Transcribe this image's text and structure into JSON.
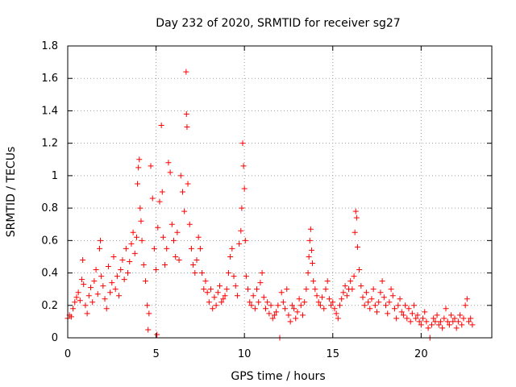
{
  "chart_data": {
    "type": "scatter",
    "title": "Day 232 of 2020, SRMTID for receiver sg27",
    "xlabel": "GPS time / hours",
    "ylabel": "SRMTID / TECUs",
    "xlim": [
      0,
      24
    ],
    "ylim": [
      0,
      1.8
    ],
    "xticks": [
      0,
      5,
      10,
      15,
      20
    ],
    "xtick_labels": [
      "0",
      "5",
      "10",
      "15",
      "20"
    ],
    "yticks": [
      0,
      0.2,
      0.4,
      0.6,
      0.8,
      1.0,
      1.2,
      1.4,
      1.6,
      1.8
    ],
    "ytick_labels": [
      "0",
      "0.2",
      "0.4",
      "0.6",
      "0.8",
      "1",
      "1.2",
      "1.4",
      "1.6",
      "1.8"
    ],
    "grid": true,
    "marker": "plus",
    "series_color": "#ff0000",
    "series": [
      {
        "name": "SRMTID",
        "points": [
          [
            0.0,
            0.12
          ],
          [
            0.1,
            0.14
          ],
          [
            0.2,
            0.13
          ],
          [
            0.3,
            0.18
          ],
          [
            0.4,
            0.22
          ],
          [
            0.5,
            0.25
          ],
          [
            0.6,
            0.28
          ],
          [
            0.7,
            0.23
          ],
          [
            0.8,
            0.36
          ],
          [
            0.85,
            0.48
          ],
          [
            0.9,
            0.33
          ],
          [
            1.0,
            0.2
          ],
          [
            1.1,
            0.15
          ],
          [
            1.2,
            0.26
          ],
          [
            1.3,
            0.31
          ],
          [
            1.4,
            0.22
          ],
          [
            1.5,
            0.35
          ],
          [
            1.6,
            0.42
          ],
          [
            1.7,
            0.27
          ],
          [
            1.8,
            0.55
          ],
          [
            1.85,
            0.6
          ],
          [
            1.9,
            0.38
          ],
          [
            2.0,
            0.32
          ],
          [
            2.1,
            0.24
          ],
          [
            2.2,
            0.18
          ],
          [
            2.3,
            0.44
          ],
          [
            2.4,
            0.28
          ],
          [
            2.5,
            0.34
          ],
          [
            2.6,
            0.5
          ],
          [
            2.7,
            0.3
          ],
          [
            2.8,
            0.38
          ],
          [
            2.9,
            0.26
          ],
          [
            3.0,
            0.42
          ],
          [
            3.1,
            0.48
          ],
          [
            3.2,
            0.36
          ],
          [
            3.3,
            0.55
          ],
          [
            3.4,
            0.4
          ],
          [
            3.5,
            0.47
          ],
          [
            3.6,
            0.58
          ],
          [
            3.7,
            0.65
          ],
          [
            3.8,
            0.52
          ],
          [
            3.9,
            0.62
          ],
          [
            3.95,
            0.95
          ],
          [
            4.0,
            1.05
          ],
          [
            4.05,
            1.1
          ],
          [
            4.1,
            0.8
          ],
          [
            4.15,
            0.72
          ],
          [
            4.2,
            0.6
          ],
          [
            4.3,
            0.45
          ],
          [
            4.4,
            0.35
          ],
          [
            4.5,
            0.2
          ],
          [
            4.55,
            0.05
          ],
          [
            4.6,
            0.15
          ],
          [
            4.7,
            1.06
          ],
          [
            4.8,
            0.86
          ],
          [
            4.9,
            0.55
          ],
          [
            5.0,
            0.42
          ],
          [
            5.05,
            0.02
          ],
          [
            5.1,
            0.68
          ],
          [
            5.2,
            0.84
          ],
          [
            5.3,
            1.31
          ],
          [
            5.35,
            0.9
          ],
          [
            5.4,
            0.62
          ],
          [
            5.5,
            0.45
          ],
          [
            5.6,
            0.55
          ],
          [
            5.7,
            1.08
          ],
          [
            5.8,
            1.02
          ],
          [
            5.9,
            0.7
          ],
          [
            6.0,
            0.6
          ],
          [
            6.1,
            0.5
          ],
          [
            6.2,
            0.65
          ],
          [
            6.3,
            0.48
          ],
          [
            6.4,
            1.0
          ],
          [
            6.5,
            0.9
          ],
          [
            6.6,
            0.78
          ],
          [
            6.7,
            1.64
          ],
          [
            6.72,
            1.38
          ],
          [
            6.75,
            1.3
          ],
          [
            6.8,
            0.95
          ],
          [
            6.9,
            0.7
          ],
          [
            7.0,
            0.55
          ],
          [
            7.1,
            0.45
          ],
          [
            7.2,
            0.4
          ],
          [
            7.3,
            0.48
          ],
          [
            7.4,
            0.62
          ],
          [
            7.5,
            0.55
          ],
          [
            7.6,
            0.4
          ],
          [
            7.7,
            0.3
          ],
          [
            7.8,
            0.35
          ],
          [
            7.9,
            0.28
          ],
          [
            8.0,
            0.22
          ],
          [
            8.1,
            0.3
          ],
          [
            8.2,
            0.18
          ],
          [
            8.3,
            0.25
          ],
          [
            8.4,
            0.2
          ],
          [
            8.5,
            0.28
          ],
          [
            8.6,
            0.32
          ],
          [
            8.7,
            0.22
          ],
          [
            8.8,
            0.24
          ],
          [
            8.9,
            0.26
          ],
          [
            9.0,
            0.3
          ],
          [
            9.1,
            0.4
          ],
          [
            9.2,
            0.5
          ],
          [
            9.3,
            0.55
          ],
          [
            9.4,
            0.38
          ],
          [
            9.5,
            0.32
          ],
          [
            9.6,
            0.26
          ],
          [
            9.7,
            0.58
          ],
          [
            9.8,
            0.66
          ],
          [
            9.85,
            0.8
          ],
          [
            9.9,
            1.2
          ],
          [
            9.95,
            1.06
          ],
          [
            10.0,
            0.92
          ],
          [
            10.05,
            0.6
          ],
          [
            10.1,
            0.38
          ],
          [
            10.2,
            0.3
          ],
          [
            10.3,
            0.22
          ],
          [
            10.4,
            0.2
          ],
          [
            10.5,
            0.26
          ],
          [
            10.6,
            0.18
          ],
          [
            10.7,
            0.3
          ],
          [
            10.8,
            0.22
          ],
          [
            10.9,
            0.34
          ],
          [
            11.0,
            0.4
          ],
          [
            11.1,
            0.25
          ],
          [
            11.2,
            0.18
          ],
          [
            11.3,
            0.22
          ],
          [
            11.4,
            0.15
          ],
          [
            11.5,
            0.2
          ],
          [
            11.6,
            0.12
          ],
          [
            11.7,
            0.14
          ],
          [
            11.8,
            0.16
          ],
          [
            11.9,
            0.2
          ],
          [
            12.0,
            0.0
          ],
          [
            12.1,
            0.28
          ],
          [
            12.2,
            0.22
          ],
          [
            12.3,
            0.18
          ],
          [
            12.4,
            0.3
          ],
          [
            12.5,
            0.14
          ],
          [
            12.6,
            0.1
          ],
          [
            12.7,
            0.2
          ],
          [
            12.8,
            0.18
          ],
          [
            12.9,
            0.12
          ],
          [
            13.0,
            0.16
          ],
          [
            13.1,
            0.24
          ],
          [
            13.2,
            0.2
          ],
          [
            13.3,
            0.14
          ],
          [
            13.4,
            0.22
          ],
          [
            13.5,
            0.3
          ],
          [
            13.6,
            0.4
          ],
          [
            13.65,
            0.5
          ],
          [
            13.7,
            0.6
          ],
          [
            13.75,
            0.67
          ],
          [
            13.8,
            0.54
          ],
          [
            13.85,
            0.46
          ],
          [
            13.9,
            0.35
          ],
          [
            14.0,
            0.3
          ],
          [
            14.1,
            0.26
          ],
          [
            14.2,
            0.22
          ],
          [
            14.3,
            0.2
          ],
          [
            14.4,
            0.25
          ],
          [
            14.5,
            0.18
          ],
          [
            14.6,
            0.3
          ],
          [
            14.7,
            0.35
          ],
          [
            14.8,
            0.24
          ],
          [
            14.9,
            0.2
          ],
          [
            15.0,
            0.22
          ],
          [
            15.1,
            0.18
          ],
          [
            15.2,
            0.15
          ],
          [
            15.3,
            0.12
          ],
          [
            15.4,
            0.2
          ],
          [
            15.5,
            0.24
          ],
          [
            15.6,
            0.28
          ],
          [
            15.7,
            0.32
          ],
          [
            15.8,
            0.26
          ],
          [
            15.9,
            0.3
          ],
          [
            16.0,
            0.35
          ],
          [
            16.1,
            0.3
          ],
          [
            16.2,
            0.38
          ],
          [
            16.25,
            0.65
          ],
          [
            16.3,
            0.78
          ],
          [
            16.35,
            0.74
          ],
          [
            16.4,
            0.56
          ],
          [
            16.5,
            0.42
          ],
          [
            16.6,
            0.32
          ],
          [
            16.7,
            0.25
          ],
          [
            16.8,
            0.2
          ],
          [
            16.9,
            0.28
          ],
          [
            17.0,
            0.22
          ],
          [
            17.1,
            0.18
          ],
          [
            17.2,
            0.24
          ],
          [
            17.3,
            0.3
          ],
          [
            17.4,
            0.2
          ],
          [
            17.5,
            0.16
          ],
          [
            17.6,
            0.22
          ],
          [
            17.7,
            0.28
          ],
          [
            17.8,
            0.35
          ],
          [
            17.9,
            0.25
          ],
          [
            18.0,
            0.2
          ],
          [
            18.1,
            0.15
          ],
          [
            18.2,
            0.22
          ],
          [
            18.3,
            0.3
          ],
          [
            18.4,
            0.26
          ],
          [
            18.5,
            0.18
          ],
          [
            18.6,
            0.12
          ],
          [
            18.7,
            0.2
          ],
          [
            18.8,
            0.24
          ],
          [
            18.9,
            0.16
          ],
          [
            19.0,
            0.14
          ],
          [
            19.1,
            0.2
          ],
          [
            19.2,
            0.12
          ],
          [
            19.3,
            0.18
          ],
          [
            19.4,
            0.1
          ],
          [
            19.5,
            0.15
          ],
          [
            19.6,
            0.2
          ],
          [
            19.7,
            0.12
          ],
          [
            19.8,
            0.14
          ],
          [
            19.9,
            0.1
          ],
          [
            20.0,
            0.08
          ],
          [
            20.1,
            0.12
          ],
          [
            20.2,
            0.16
          ],
          [
            20.3,
            0.1
          ],
          [
            20.4,
            0.06
          ],
          [
            20.5,
            0.0
          ],
          [
            20.6,
            0.08
          ],
          [
            20.7,
            0.12
          ],
          [
            20.8,
            0.1
          ],
          [
            20.9,
            0.14
          ],
          [
            21.0,
            0.08
          ],
          [
            21.1,
            0.1
          ],
          [
            21.2,
            0.06
          ],
          [
            21.3,
            0.12
          ],
          [
            21.4,
            0.18
          ],
          [
            21.5,
            0.1
          ],
          [
            21.6,
            0.08
          ],
          [
            21.7,
            0.14
          ],
          [
            21.8,
            0.1
          ],
          [
            21.9,
            0.12
          ],
          [
            22.0,
            0.06
          ],
          [
            22.1,
            0.1
          ],
          [
            22.2,
            0.14
          ],
          [
            22.3,
            0.08
          ],
          [
            22.4,
            0.12
          ],
          [
            22.5,
            0.2
          ],
          [
            22.6,
            0.24
          ],
          [
            22.7,
            0.1
          ],
          [
            22.8,
            0.12
          ],
          [
            22.9,
            0.08
          ]
        ]
      }
    ]
  }
}
